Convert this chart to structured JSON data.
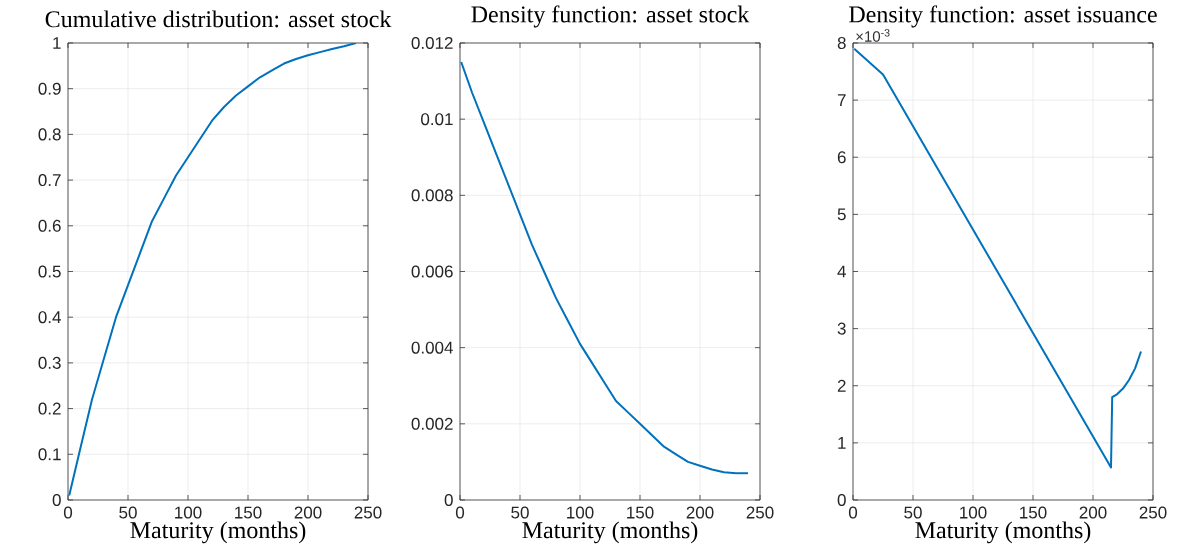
{
  "chart_data": [
    {
      "type": "line",
      "title": "Cumulative distribution: asset stock",
      "xlabel": "Maturity (months)",
      "xlim": [
        0,
        250
      ],
      "xticks": [
        0,
        50,
        100,
        150,
        200,
        250
      ],
      "ylim": [
        0,
        1
      ],
      "yticks": [
        0,
        0.1,
        0.2,
        0.3,
        0.4,
        0.5,
        0.6,
        0.7,
        0.8,
        0.9,
        1
      ],
      "grid": true,
      "x": [
        1,
        10,
        20,
        30,
        40,
        50,
        60,
        70,
        80,
        90,
        100,
        110,
        120,
        130,
        140,
        150,
        160,
        170,
        180,
        190,
        200,
        210,
        220,
        230,
        240
      ],
      "series": [
        {
          "color": "#0072bd",
          "values": [
            0.01,
            0.11,
            0.22,
            0.31,
            0.4,
            0.47,
            0.54,
            0.61,
            0.66,
            0.71,
            0.75,
            0.79,
            0.83,
            0.86,
            0.885,
            0.905,
            0.925,
            0.94,
            0.955,
            0.965,
            0.973,
            0.98,
            0.987,
            0.993,
            1.0
          ]
        }
      ]
    },
    {
      "type": "line",
      "title": "Density function: asset stock",
      "xlabel": "Maturity (months)",
      "xlim": [
        0,
        250
      ],
      "xticks": [
        0,
        50,
        100,
        150,
        200,
        250
      ],
      "ylim": [
        0,
        0.012
      ],
      "yticks": [
        0,
        0.002,
        0.004,
        0.006,
        0.008,
        0.01,
        0.012
      ],
      "grid": true,
      "x": [
        1,
        10,
        20,
        30,
        40,
        50,
        60,
        70,
        80,
        90,
        100,
        110,
        120,
        130,
        140,
        150,
        160,
        170,
        180,
        190,
        200,
        210,
        220,
        230,
        240
      ],
      "series": [
        {
          "color": "#0072bd",
          "values": [
            0.0115,
            0.0107,
            0.0099,
            0.0091,
            0.0083,
            0.0075,
            0.0067,
            0.006,
            0.0053,
            0.0047,
            0.0041,
            0.0036,
            0.0031,
            0.0026,
            0.0023,
            0.002,
            0.0017,
            0.0014,
            0.0012,
            0.001,
            0.0009,
            0.0008,
            0.00073,
            0.0007,
            0.0007
          ]
        }
      ]
    },
    {
      "type": "line",
      "title": "Density function: asset issuance",
      "xlabel": "Maturity (months)",
      "xlim": [
        0,
        250
      ],
      "xticks": [
        0,
        50,
        100,
        150,
        200,
        250
      ],
      "ylim": [
        0,
        8
      ],
      "yticks": [
        0,
        1,
        2,
        3,
        4,
        5,
        6,
        7,
        8
      ],
      "grid": true,
      "annotations": [
        "×10$^{-3}$"
      ],
      "x": [
        1,
        25,
        215,
        216,
        220,
        225,
        230,
        235,
        240
      ],
      "series": [
        {
          "color": "#0072bd",
          "values": [
            7.9,
            7.45,
            0.57,
            1.8,
            1.85,
            1.95,
            2.1,
            2.3,
            2.6
          ]
        }
      ]
    }
  ]
}
